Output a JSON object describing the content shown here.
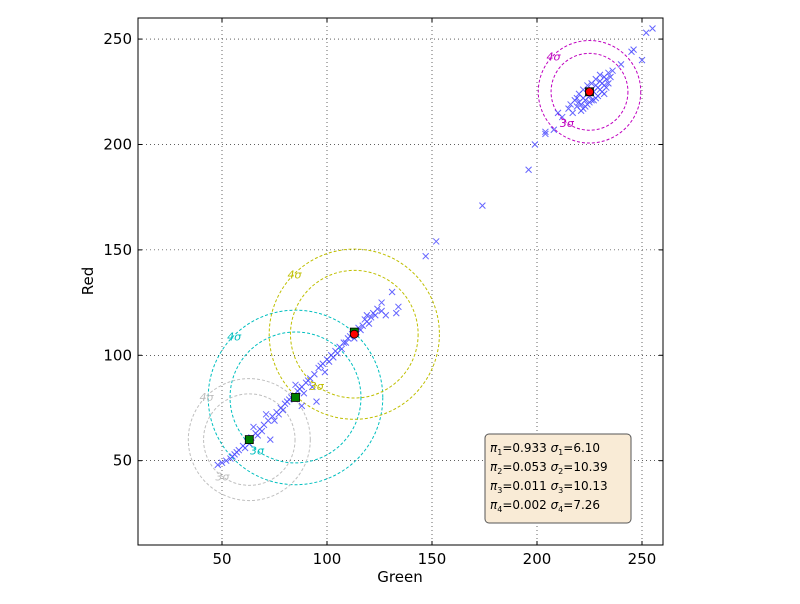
{
  "chart_data": {
    "type": "scatter",
    "title": "",
    "xlabel": "Green",
    "ylabel": "Red",
    "xlim": [
      10,
      260
    ],
    "ylim": [
      10,
      260
    ],
    "xticks": [
      50,
      100,
      150,
      200,
      250
    ],
    "yticks": [
      50,
      100,
      150,
      200,
      250
    ],
    "grid": true,
    "colors": {
      "points": "#4a4aff",
      "cluster1": "#bf00bf",
      "cluster2": "#00bfbf",
      "cluster3": "#bfbf00",
      "cluster4": "#bfbfbf",
      "mean_green": "#008000",
      "mean_red": "#ff0000",
      "legend_bg": "#f9ebd6"
    },
    "clusters": [
      {
        "center": [
          225,
          225
        ],
        "sigma": 6.1,
        "mean_marker": "circle",
        "label_3": "3σ",
        "label_4": "4σ"
      },
      {
        "center": [
          85,
          80
        ],
        "sigma": 10.39,
        "mean_marker": "square",
        "label_3": "3σ",
        "label_4": "4σ"
      },
      {
        "center": [
          113,
          110
        ],
        "sigma": 10.13,
        "mean_marker": "circle",
        "label_3": "3σ",
        "label_4": "4σ"
      },
      {
        "center": [
          63,
          60
        ],
        "sigma": 7.26,
        "mean_marker": "square",
        "label_3": "3σ",
        "label_4": "4σ"
      }
    ],
    "extra_means": [
      {
        "point": [
          113,
          111
        ],
        "marker": "square"
      },
      {
        "point": [
          225,
          225
        ],
        "marker": "square"
      }
    ],
    "scatter_points": [
      [
        255,
        255
      ],
      [
        252,
        253
      ],
      [
        250,
        240
      ],
      [
        246,
        245
      ],
      [
        245,
        244
      ],
      [
        240,
        238
      ],
      [
        212,
        213
      ],
      [
        210,
        215
      ],
      [
        208,
        207
      ],
      [
        204,
        206
      ],
      [
        204,
        205
      ],
      [
        199,
        200
      ],
      [
        196,
        188
      ],
      [
        174,
        171
      ],
      [
        152,
        154
      ],
      [
        147,
        147
      ],
      [
        131,
        130
      ],
      [
        133,
        120
      ],
      [
        134,
        123
      ],
      [
        128,
        119
      ],
      [
        126,
        125
      ],
      [
        124,
        122
      ],
      [
        121,
        118
      ],
      [
        119,
        116
      ],
      [
        117,
        114
      ],
      [
        114,
        111
      ],
      [
        112,
        110
      ],
      [
        110,
        108
      ],
      [
        108,
        106
      ],
      [
        106,
        104
      ],
      [
        104,
        102
      ],
      [
        102,
        100
      ],
      [
        100,
        98
      ],
      [
        98,
        96
      ],
      [
        96,
        94
      ],
      [
        94,
        91
      ],
      [
        92,
        89
      ],
      [
        90,
        87
      ],
      [
        88,
        85
      ],
      [
        86,
        83
      ],
      [
        84,
        81
      ],
      [
        82,
        79
      ],
      [
        80,
        77
      ],
      [
        78,
        75
      ],
      [
        76,
        73
      ],
      [
        74,
        71
      ],
      [
        72,
        69
      ],
      [
        70,
        67
      ],
      [
        68,
        65
      ],
      [
        66,
        63
      ],
      [
        64,
        61
      ],
      [
        62,
        59
      ],
      [
        60,
        57
      ],
      [
        58,
        55
      ],
      [
        56,
        53
      ],
      [
        54,
        51
      ],
      [
        52,
        50
      ],
      [
        50,
        49
      ],
      [
        48,
        48
      ],
      [
        95,
        78
      ],
      [
        73,
        60
      ],
      [
        71,
        72
      ],
      [
        88,
        76
      ],
      [
        81,
        78
      ],
      [
        75,
        69
      ],
      [
        79,
        74
      ],
      [
        91,
        88
      ],
      [
        93,
        85
      ],
      [
        99,
        92
      ],
      [
        103,
        99
      ],
      [
        107,
        103
      ],
      [
        109,
        106
      ],
      [
        115,
        113
      ],
      [
        118,
        117
      ],
      [
        120,
        115
      ],
      [
        69,
        64
      ],
      [
        65,
        66
      ],
      [
        63,
        58
      ],
      [
        61,
        56
      ],
      [
        57,
        54
      ],
      [
        55,
        52
      ],
      [
        67,
        62
      ],
      [
        77,
        72
      ],
      [
        83,
        80
      ],
      [
        87,
        84
      ],
      [
        89,
        82
      ],
      [
        85,
        86
      ],
      [
        101,
        97
      ],
      [
        105,
        101
      ],
      [
        111,
        109
      ],
      [
        113,
        108
      ],
      [
        116,
        112
      ],
      [
        123,
        119
      ],
      [
        126,
        121
      ],
      [
        122,
        120
      ],
      [
        119,
        119
      ],
      [
        97,
        95
      ],
      [
        219,
        218
      ],
      [
        220,
        220
      ],
      [
        221,
        219
      ],
      [
        222,
        222
      ],
      [
        223,
        221
      ],
      [
        224,
        224
      ],
      [
        225,
        223
      ],
      [
        226,
        226
      ],
      [
        227,
        225
      ],
      [
        228,
        228
      ],
      [
        229,
        227
      ],
      [
        230,
        230
      ],
      [
        231,
        229
      ],
      [
        232,
        232
      ],
      [
        233,
        231
      ],
      [
        234,
        234
      ],
      [
        218,
        221
      ],
      [
        220,
        224
      ],
      [
        222,
        226
      ],
      [
        224,
        228
      ],
      [
        226,
        229
      ],
      [
        228,
        231
      ],
      [
        230,
        233
      ],
      [
        232,
        228
      ],
      [
        221,
        216
      ],
      [
        223,
        218
      ],
      [
        225,
        220
      ],
      [
        227,
        221
      ],
      [
        229,
        223
      ],
      [
        231,
        225
      ],
      [
        233,
        227
      ],
      [
        235,
        232
      ],
      [
        217,
        215
      ],
      [
        219,
        222
      ],
      [
        236,
        235
      ],
      [
        215,
        217
      ],
      [
        216,
        219
      ],
      [
        232,
        224
      ],
      [
        228,
        222
      ],
      [
        224,
        219
      ],
      [
        226,
        221
      ],
      [
        222,
        217
      ],
      [
        230,
        226
      ],
      [
        234,
        229
      ]
    ]
  },
  "legend": {
    "rows": [
      {
        "pi": "π",
        "pi_sub": "1",
        "pi_val": "=0.933",
        "sigma": "σ",
        "sigma_sub": "1",
        "sigma_val": "=6.10"
      },
      {
        "pi": "π",
        "pi_sub": "2",
        "pi_val": "=0.053",
        "sigma": "σ",
        "sigma_sub": "2",
        "sigma_val": "=10.39"
      },
      {
        "pi": "π",
        "pi_sub": "3",
        "pi_val": "=0.011",
        "sigma": "σ",
        "sigma_sub": "3",
        "sigma_val": "=10.13"
      },
      {
        "pi": "π",
        "pi_sub": "4",
        "pi_val": "=0.002",
        "sigma": "σ",
        "sigma_sub": "4",
        "sigma_val": "=7.26"
      }
    ]
  }
}
